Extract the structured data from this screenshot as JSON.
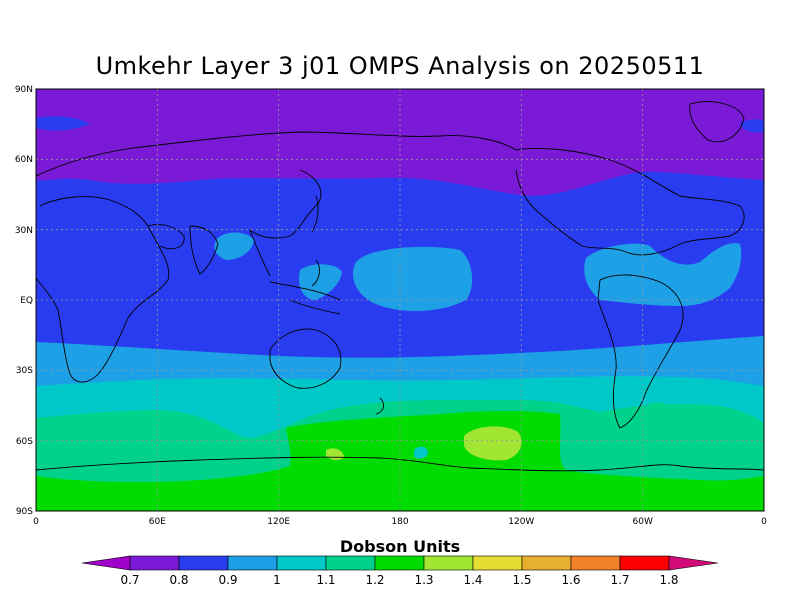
{
  "title": "Umkehr Layer 3 j01 OMPS Analysis on 20250511",
  "map": {
    "lat_labels": [
      "90N",
      "60N",
      "30N",
      "EQ",
      "30S",
      "60S",
      "90S"
    ],
    "lon_labels": [
      "0",
      "60E",
      "120E",
      "180",
      "120W",
      "60W",
      "0"
    ]
  },
  "colorbar": {
    "title": "Dobson Units",
    "levels": [
      "0.7",
      "0.8",
      "0.9",
      "1",
      "1.1",
      "1.2",
      "1.3",
      "1.4",
      "1.5",
      "1.6",
      "1.7",
      "1.8"
    ],
    "colors": [
      "#a000c8",
      "#7a1ad6",
      "#2a3cf0",
      "#1ea0e6",
      "#00c8c8",
      "#00d28c",
      "#00dc00",
      "#a0e632",
      "#e6dc32",
      "#e6af2d",
      "#f08228",
      "#fa0000",
      "#d20a78"
    ]
  }
}
